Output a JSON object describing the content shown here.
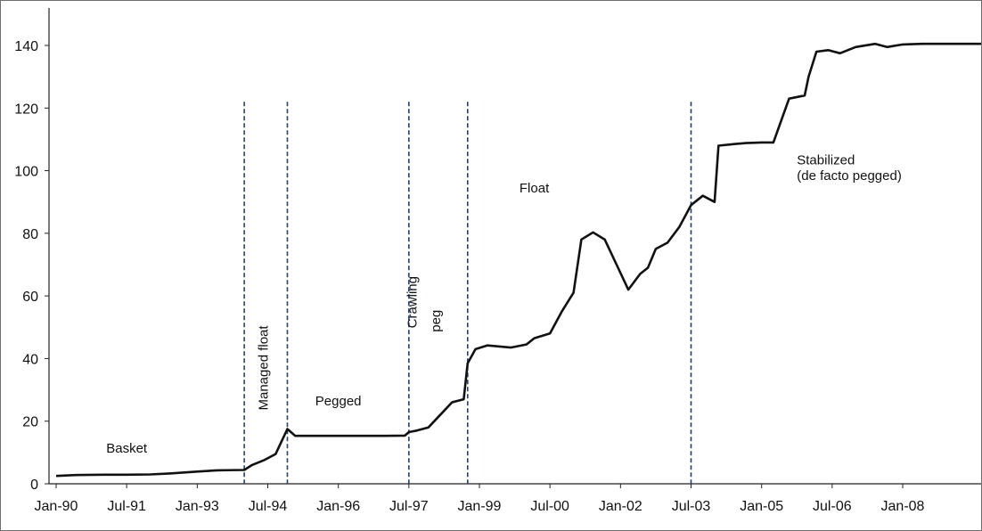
{
  "chart_data": {
    "type": "line",
    "title": "",
    "xlabel": "",
    "ylabel": "",
    "ylim": [
      0,
      150
    ],
    "grid": false,
    "legend": "none",
    "x_tick_labels": [
      "Jan-90",
      "Jul-91",
      "Jan-93",
      "Jul-94",
      "Jan-96",
      "Jul-97",
      "Jan-99",
      "Jul-00",
      "Jan-02",
      "Jul-03",
      "Jan-05",
      "Jul-06",
      "Jan-08"
    ],
    "x_tick_dates": [
      "1990-01",
      "1991-07",
      "1993-01",
      "1994-07",
      "1996-01",
      "1997-07",
      "1999-01",
      "2000-07",
      "2002-01",
      "2003-07",
      "2005-01",
      "2006-07",
      "2008-01"
    ],
    "y_ticks": [
      0,
      20,
      40,
      60,
      80,
      100,
      120,
      140
    ],
    "series": [
      {
        "name": "",
        "color": "#111111",
        "points": [
          [
            "1990-01",
            2.5
          ],
          [
            "1990-06",
            2.8
          ],
          [
            "1991-01",
            2.9
          ],
          [
            "1991-07",
            2.9
          ],
          [
            "1992-01",
            3.0
          ],
          [
            "1992-06",
            3.3
          ],
          [
            "1993-01",
            3.9
          ],
          [
            "1993-06",
            4.3
          ],
          [
            "1994-01",
            4.4
          ],
          [
            "1994-03",
            6.0
          ],
          [
            "1994-06",
            7.5
          ],
          [
            "1994-09",
            9.5
          ],
          [
            "1994-12",
            17.5
          ],
          [
            "1995-02",
            15.3
          ],
          [
            "1996-01",
            15.3
          ],
          [
            "1997-01",
            15.3
          ],
          [
            "1997-06",
            15.4
          ],
          [
            "1997-07",
            16.5
          ],
          [
            "1997-09",
            17.0
          ],
          [
            "1997-12",
            18.0
          ],
          [
            "1998-03",
            22.0
          ],
          [
            "1998-06",
            26.0
          ],
          [
            "1998-09",
            27.0
          ],
          [
            "1998-10",
            38.5
          ],
          [
            "1998-12",
            43.0
          ],
          [
            "1999-03",
            44.2
          ],
          [
            "1999-09",
            43.5
          ],
          [
            "2000-01",
            44.5
          ],
          [
            "2000-03",
            46.5
          ],
          [
            "2000-07",
            48.0
          ],
          [
            "2000-10",
            55.0
          ],
          [
            "2001-01",
            61.0
          ],
          [
            "2001-03",
            78.0
          ],
          [
            "2001-06",
            80.3
          ],
          [
            "2001-09",
            78.0
          ],
          [
            "2001-12",
            70.0
          ],
          [
            "2002-03",
            62.0
          ],
          [
            "2002-06",
            67.0
          ],
          [
            "2002-08",
            69.0
          ],
          [
            "2002-10",
            75.0
          ],
          [
            "2003-01",
            77.0
          ],
          [
            "2003-04",
            82.0
          ],
          [
            "2003-07",
            89.0
          ],
          [
            "2003-10",
            92.0
          ],
          [
            "2004-01",
            90.0
          ],
          [
            "2004-02",
            108.0
          ],
          [
            "2004-06",
            108.5
          ],
          [
            "2004-09",
            108.8
          ],
          [
            "2005-01",
            109.0
          ],
          [
            "2005-04",
            109.0
          ],
          [
            "2005-08",
            123.0
          ],
          [
            "2005-12",
            124.0
          ],
          [
            "2006-01",
            130.0
          ],
          [
            "2006-03",
            138.0
          ],
          [
            "2006-06",
            138.5
          ],
          [
            "2006-09",
            137.5
          ],
          [
            "2007-01",
            139.5
          ],
          [
            "2007-06",
            140.5
          ],
          [
            "2007-09",
            139.5
          ],
          [
            "2008-01",
            140.3
          ],
          [
            "2008-06",
            140.5
          ],
          [
            "2009-01",
            140.5
          ],
          [
            "2009-09",
            140.5
          ]
        ]
      }
    ],
    "regime_boundaries": [
      "1994-01",
      "1994-12",
      "1997-07",
      "1998-10",
      "2003-07"
    ],
    "regime_labels": [
      {
        "text": "Basket",
        "x": "1991-07",
        "y": 10,
        "rotate": false
      },
      {
        "text": "Managed float",
        "x": "1994-07",
        "y": 37,
        "rotate": true
      },
      {
        "text": "Pegged",
        "x": "1996-01",
        "y": 25,
        "rotate": false
      },
      {
        "text": "Crawling",
        "x": "1997-09",
        "y": 58,
        "rotate": true
      },
      {
        "text": "peg",
        "x": "1998-03",
        "y": 52,
        "rotate": true
      },
      {
        "text": "Float",
        "x": "2000-03",
        "y": 93,
        "rotate": false
      },
      {
        "text": "Stabilized",
        "x": "2006-07",
        "y": 102,
        "rotate": false
      },
      {
        "text": "(de facto pegged)",
        "x": "2006-07",
        "y": 97,
        "rotate": false
      }
    ]
  }
}
